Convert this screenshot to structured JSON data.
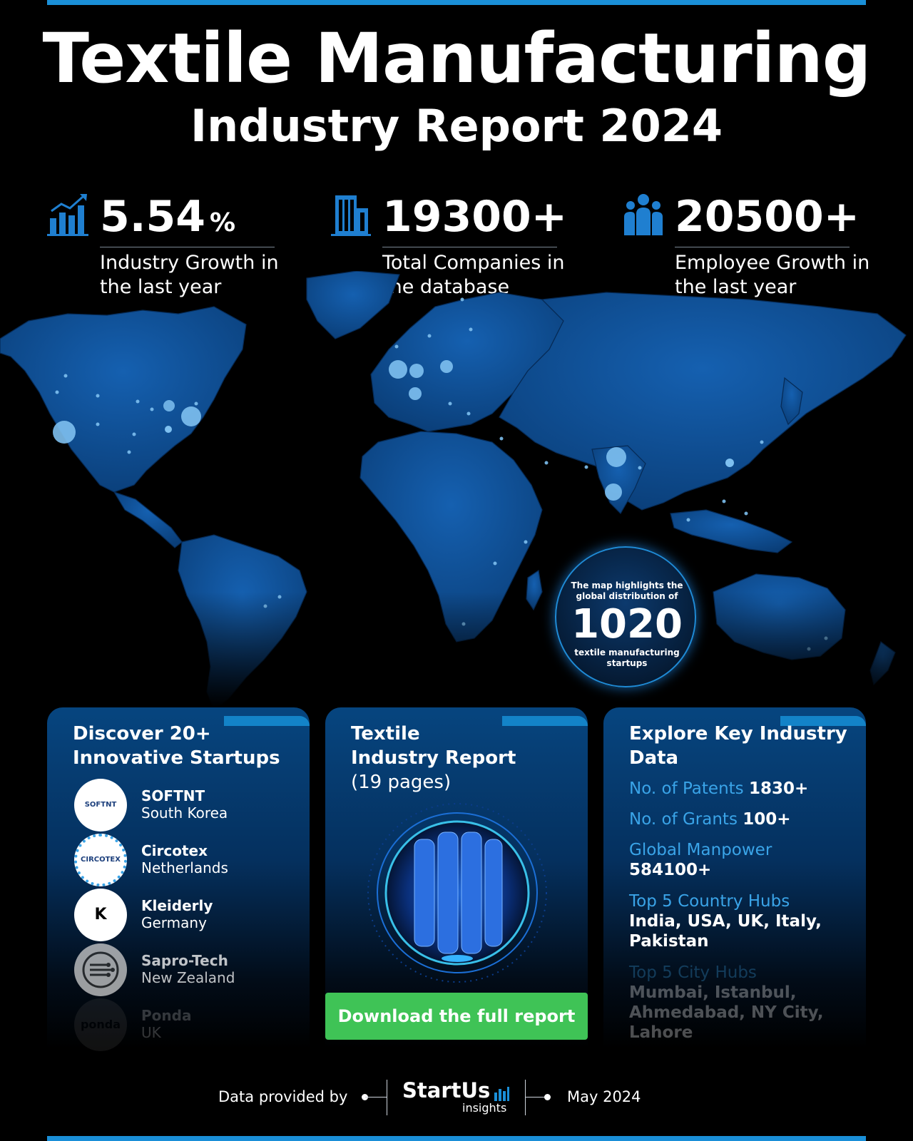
{
  "header": {
    "title": "Textile Manufacturing",
    "subtitle": "Industry Report 2024"
  },
  "stats": [
    {
      "value": "5.54",
      "unit": "%",
      "description": "Industry Growth in the last year",
      "icon": "bar-chart-growth-icon"
    },
    {
      "value": "19300+",
      "unit": "",
      "description": "Total Companies in the database",
      "icon": "buildings-icon"
    },
    {
      "value": "20500+",
      "unit": "",
      "description": "Employee Growth in the last year",
      "icon": "people-group-icon"
    }
  ],
  "map_badge": {
    "intro": "The map highlights the global distribution of",
    "count": "1020",
    "outro": "textile manufacturing startups"
  },
  "startups_card": {
    "title": "Discover 20+ Innovative Startups",
    "items": [
      {
        "name": "SOFTNT",
        "country": "South Korea",
        "logo_text": "SOFTNT"
      },
      {
        "name": "Circotex",
        "country": "Netherlands",
        "logo_text": "CIRCOTEX"
      },
      {
        "name": "Kleiderly",
        "country": "Germany",
        "logo_text": "K"
      },
      {
        "name": "Sapro-Tech",
        "country": "New Zealand",
        "logo_text": ""
      },
      {
        "name": "Ponda",
        "country": "UK",
        "logo_text": "ponda"
      }
    ]
  },
  "report_card": {
    "title_line1": "Textile",
    "title_line2": "Industry Report",
    "pages": "(19 pages)",
    "download_label": "Download the full report"
  },
  "data_card": {
    "title": "Explore Key Industry Data",
    "patents_label": "No. of Patents",
    "patents_value": "1830+",
    "grants_label": "No. of Grants",
    "grants_value": "100+",
    "manpower_label": "Global Manpower",
    "manpower_value": "584100+",
    "country_hubs_label": "Top 5 Country Hubs",
    "country_hubs_value": "India, USA, UK, Italy, Pakistan",
    "city_hubs_label": "Top 5 City Hubs",
    "city_hubs_value": "Mumbai, Istanbul, Ahmedabad, NY City, Lahore"
  },
  "footer": {
    "provided_by": "Data provided by",
    "brand_name": "StartUs",
    "brand_sub": "insights",
    "date": "May 2024"
  },
  "colors": {
    "accent_blue": "#1a8fd8",
    "map_blue": "#0d4f95",
    "button_green": "#3fc356",
    "key_label_blue": "#3aa4e8"
  }
}
